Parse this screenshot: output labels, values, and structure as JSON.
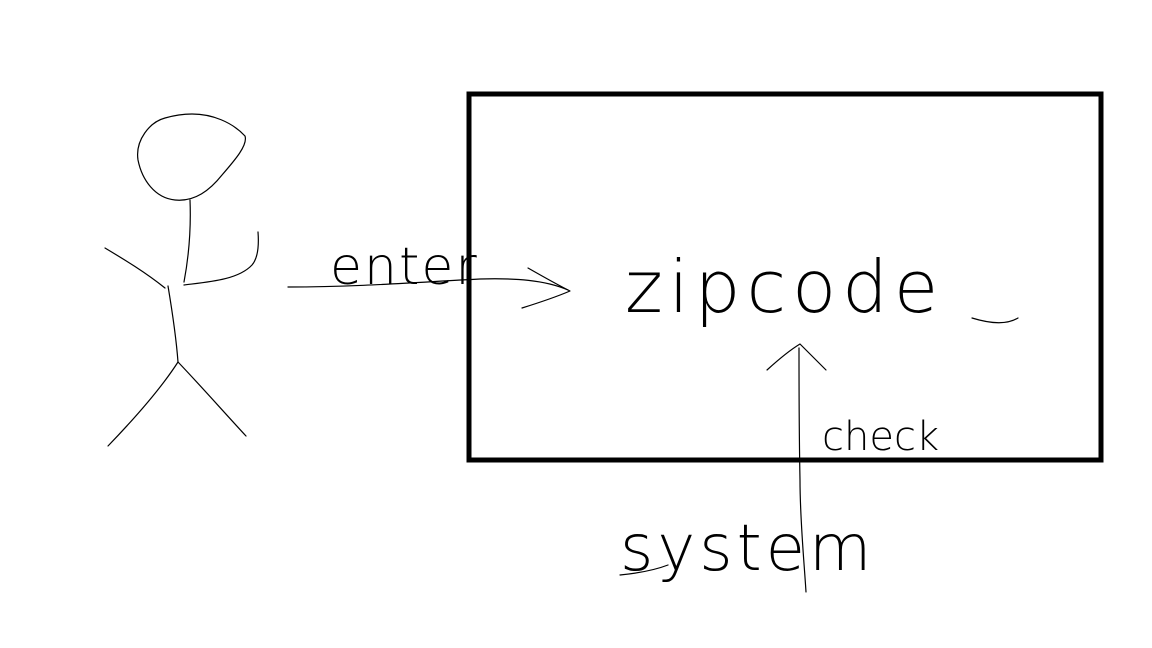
{
  "diagram": {
    "labels": {
      "enter": "enter",
      "zipcode": "zipcode",
      "check": "check",
      "system": "system"
    }
  }
}
